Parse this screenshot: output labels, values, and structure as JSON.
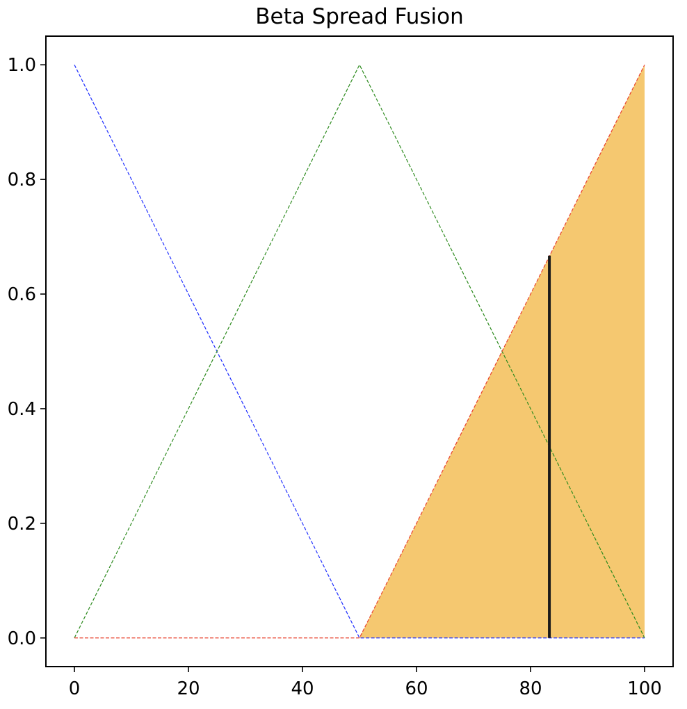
{
  "chart_data": {
    "type": "line",
    "title": "Beta Spread Fusion",
    "xlabel": "",
    "ylabel": "",
    "xlim": [
      -5,
      105
    ],
    "ylim": [
      -0.05,
      1.05
    ],
    "x_ticks": [
      0,
      20,
      40,
      60,
      80,
      100
    ],
    "y_ticks": [
      0.0,
      0.2,
      0.4,
      0.6,
      0.8,
      1.0
    ],
    "x_tick_labels": [
      "0",
      "20",
      "40",
      "60",
      "80",
      "100"
    ],
    "y_tick_labels": [
      "0.0",
      "0.2",
      "0.4",
      "0.6",
      "0.8",
      "1.0"
    ],
    "grid": false,
    "series": [
      {
        "color": "#1f2fff",
        "style": "dashed",
        "x": [
          0,
          50,
          100
        ],
        "y": [
          1.0,
          0.0,
          0.0
        ]
      },
      {
        "color": "#2e8b1f",
        "style": "dashed",
        "x": [
          0,
          50,
          100
        ],
        "y": [
          0.0,
          1.0,
          0.0
        ]
      },
      {
        "color": "#e8412e",
        "style": "dashed",
        "x": [
          0,
          50,
          100
        ],
        "y": [
          0.0,
          0.0,
          1.0
        ]
      }
    ],
    "filled_area": {
      "color": "#f5c870",
      "x": [
        50,
        100,
        100
      ],
      "y": [
        0.0,
        1.0,
        0.0
      ]
    },
    "vertical_line": {
      "color": "#1a1a1a",
      "x": 83.3,
      "y_from": 0.0,
      "y_to": 0.667
    }
  }
}
